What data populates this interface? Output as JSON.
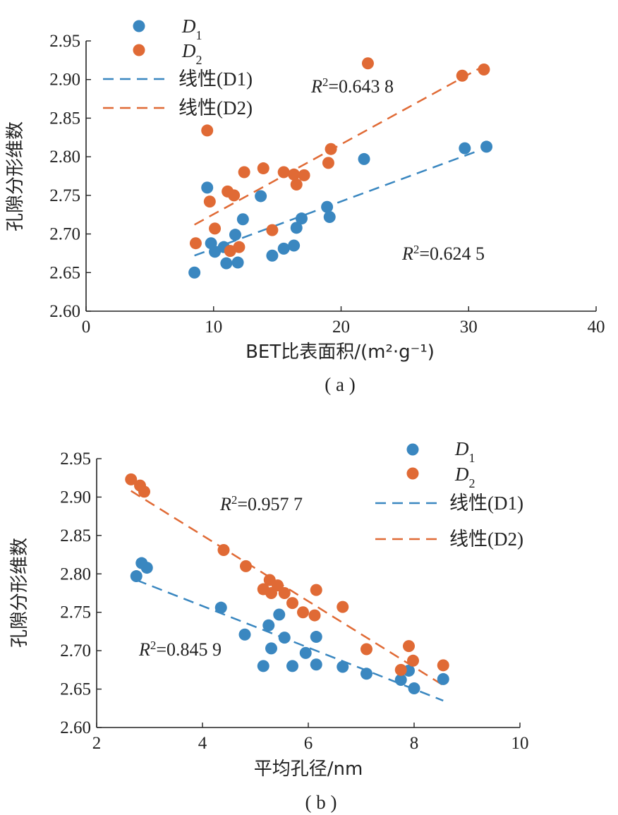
{
  "colors": {
    "d1": "#3A87C0",
    "d2": "#E06A35",
    "axis": "#222222"
  },
  "chart_data": [
    {
      "type": "scatter",
      "caption": "( a )",
      "xlabel": "BET比表面积/(m²·g⁻¹)",
      "ylabel": "孔隙分形维数",
      "xlim": [
        0,
        40
      ],
      "ylim": [
        2.6,
        2.95
      ],
      "xticks": [
        0,
        10,
        20,
        30,
        40
      ],
      "yticks": [
        2.6,
        2.65,
        2.7,
        2.75,
        2.8,
        2.85,
        2.9,
        2.95
      ],
      "legend_position": "top-left",
      "series": [
        {
          "name": "D1",
          "points": [
            [
              8.5,
              2.65
            ],
            [
              9.5,
              2.76
            ],
            [
              9.8,
              2.688
            ],
            [
              10.1,
              2.677
            ],
            [
              10.8,
              2.683
            ],
            [
              11.0,
              2.662
            ],
            [
              11.7,
              2.699
            ],
            [
              11.9,
              2.663
            ],
            [
              12.3,
              2.719
            ],
            [
              13.7,
              2.749
            ],
            [
              14.6,
              2.672
            ],
            [
              15.5,
              2.681
            ],
            [
              16.3,
              2.685
            ],
            [
              16.5,
              2.708
            ],
            [
              16.9,
              2.72
            ],
            [
              18.9,
              2.735
            ],
            [
              19.1,
              2.722
            ],
            [
              21.8,
              2.797
            ],
            [
              29.7,
              2.811
            ],
            [
              31.4,
              2.813
            ]
          ]
        },
        {
          "name": "D2",
          "points": [
            [
              8.6,
              2.688
            ],
            [
              9.5,
              2.834
            ],
            [
              9.7,
              2.742
            ],
            [
              10.1,
              2.707
            ],
            [
              11.1,
              2.755
            ],
            [
              11.3,
              2.678
            ],
            [
              11.6,
              2.75
            ],
            [
              12.0,
              2.683
            ],
            [
              12.4,
              2.78
            ],
            [
              13.9,
              2.785
            ],
            [
              14.6,
              2.705
            ],
            [
              15.5,
              2.78
            ],
            [
              16.3,
              2.777
            ],
            [
              16.5,
              2.764
            ],
            [
              17.1,
              2.776
            ],
            [
              19.0,
              2.792
            ],
            [
              19.2,
              2.81
            ],
            [
              22.1,
              2.921
            ],
            [
              29.5,
              2.905
            ],
            [
              31.2,
              2.913
            ]
          ]
        }
      ],
      "fits": [
        {
          "name": "线性(D1)",
          "from": [
            8.5,
            2.672
          ],
          "to": [
            30.8,
            2.808
          ]
        },
        {
          "name": "线性(D2)",
          "from": [
            8.5,
            2.712
          ],
          "to": [
            30.8,
            2.914
          ]
        }
      ],
      "annotations": [
        {
          "series": "D2",
          "label": "R",
          "sup": "2",
          "value": "=0.643 8"
        },
        {
          "series": "D1",
          "label": "R",
          "sup": "2",
          "value": "=0.624 5"
        }
      ]
    },
    {
      "type": "scatter",
      "caption": "( b )",
      "xlabel": "平均孔径/nm",
      "ylabel": "孔隙分形维数",
      "xlim": [
        2,
        10
      ],
      "ylim": [
        2.6,
        2.95
      ],
      "xticks": [
        2,
        4,
        6,
        8,
        10
      ],
      "yticks": [
        2.6,
        2.65,
        2.7,
        2.75,
        2.8,
        2.85,
        2.9,
        2.95
      ],
      "legend_position": "top-right",
      "series": [
        {
          "name": "D1",
          "points": [
            [
              2.75,
              2.797
            ],
            [
              2.85,
              2.814
            ],
            [
              2.95,
              2.808
            ],
            [
              4.35,
              2.756
            ],
            [
              4.8,
              2.721
            ],
            [
              5.15,
              2.68
            ],
            [
              5.25,
              2.733
            ],
            [
              5.3,
              2.703
            ],
            [
              5.45,
              2.747
            ],
            [
              5.55,
              2.717
            ],
            [
              5.7,
              2.68
            ],
            [
              5.95,
              2.697
            ],
            [
              6.15,
              2.718
            ],
            [
              6.15,
              2.682
            ],
            [
              6.65,
              2.679
            ],
            [
              7.1,
              2.67
            ],
            [
              7.75,
              2.662
            ],
            [
              7.9,
              2.674
            ],
            [
              8.0,
              2.651
            ],
            [
              8.55,
              2.663
            ]
          ]
        },
        {
          "name": "D2",
          "points": [
            [
              2.65,
              2.923
            ],
            [
              2.82,
              2.915
            ],
            [
              2.9,
              2.907
            ],
            [
              4.4,
              2.831
            ],
            [
              4.82,
              2.81
            ],
            [
              5.15,
              2.78
            ],
            [
              5.27,
              2.792
            ],
            [
              5.3,
              2.775
            ],
            [
              5.42,
              2.785
            ],
            [
              5.55,
              2.775
            ],
            [
              5.7,
              2.762
            ],
            [
              5.9,
              2.75
            ],
            [
              6.12,
              2.746
            ],
            [
              6.15,
              2.779
            ],
            [
              6.65,
              2.757
            ],
            [
              7.1,
              2.702
            ],
            [
              7.75,
              2.675
            ],
            [
              7.9,
              2.706
            ],
            [
              7.98,
              2.687
            ],
            [
              8.55,
              2.681
            ]
          ]
        }
      ],
      "fits": [
        {
          "name": "线性(D1)",
          "from": [
            2.75,
            2.792
          ],
          "to": [
            8.55,
            2.635
          ]
        },
        {
          "name": "线性(D2)",
          "from": [
            2.65,
            2.908
          ],
          "to": [
            8.55,
            2.655
          ]
        }
      ],
      "annotations": [
        {
          "series": "D2",
          "label": "R",
          "sup": "2",
          "value": "=0.957 7"
        },
        {
          "series": "D1",
          "label": "R",
          "sup": "2",
          "value": "=0.845 9"
        }
      ]
    }
  ]
}
